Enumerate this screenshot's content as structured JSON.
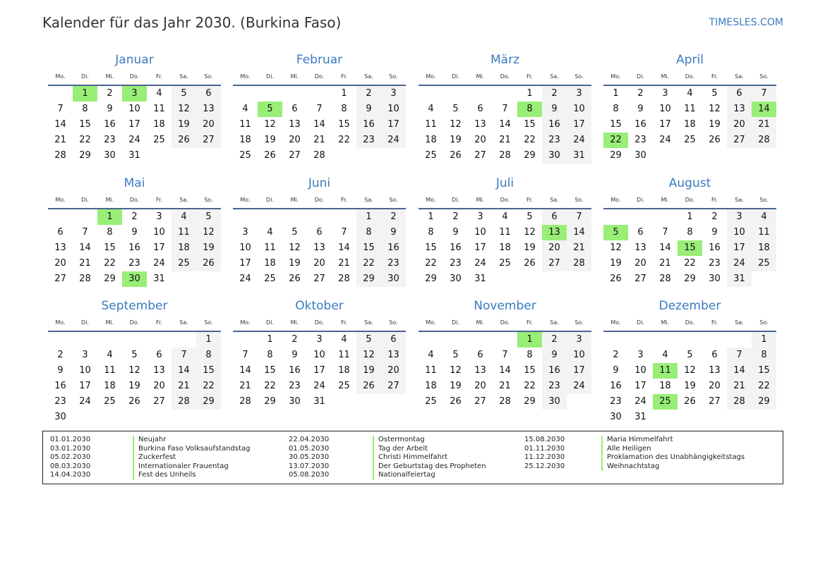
{
  "header": {
    "title": "Kalender für das Jahr 2030. (Burkina Faso)",
    "site": "TIMESLES.COM"
  },
  "colors": {
    "accent": "#3a7bbf",
    "holiday": "#99ee77",
    "weekend": "#f3f3f3",
    "rule": "#4a6590"
  },
  "weekdays": [
    "Mo.",
    "Di.",
    "Mi.",
    "Do.",
    "Fr.",
    "Sa.",
    "So."
  ],
  "months": [
    {
      "name": "Januar",
      "start_weekday": "Di.",
      "days": 31,
      "holidays": [
        1,
        3
      ]
    },
    {
      "name": "Februar",
      "start_weekday": "Fr.",
      "days": 28,
      "holidays": [
        5
      ]
    },
    {
      "name": "März",
      "start_weekday": "Fr.",
      "days": 31,
      "holidays": [
        8
      ]
    },
    {
      "name": "April",
      "start_weekday": "Mo.",
      "days": 30,
      "holidays": [
        14,
        22
      ]
    },
    {
      "name": "Mai",
      "start_weekday": "Mi.",
      "days": 31,
      "holidays": [
        1,
        30
      ]
    },
    {
      "name": "Juni",
      "start_weekday": "Sa.",
      "days": 30,
      "holidays": []
    },
    {
      "name": "Juli",
      "start_weekday": "Mo.",
      "days": 31,
      "holidays": [
        13
      ]
    },
    {
      "name": "August",
      "start_weekday": "Do.",
      "days": 31,
      "holidays": [
        5,
        15
      ]
    },
    {
      "name": "September",
      "start_weekday": "So.",
      "days": 30,
      "holidays": []
    },
    {
      "name": "Oktober",
      "start_weekday": "Di.",
      "days": 31,
      "holidays": []
    },
    {
      "name": "November",
      "start_weekday": "Fr.",
      "days": 30,
      "holidays": [
        1
      ]
    },
    {
      "name": "Dezember",
      "start_weekday": "So.",
      "days": 31,
      "holidays": [
        11,
        25
      ]
    }
  ],
  "legend": [
    {
      "date": "01.01.2030",
      "name": "Neujahr"
    },
    {
      "date": "03.01.2030",
      "name": "Burkina Faso Volksaufstandstag"
    },
    {
      "date": "05.02.2030",
      "name": "Zuckerfest"
    },
    {
      "date": "08.03.2030",
      "name": "Internationaler Frauentag"
    },
    {
      "date": "14.04.2030",
      "name": "Fest des Unheils"
    },
    {
      "date": "22.04.2030",
      "name": "Ostermontag"
    },
    {
      "date": "01.05.2030",
      "name": "Tag der Arbeit"
    },
    {
      "date": "30.05.2030",
      "name": "Christi Himmelfahrt"
    },
    {
      "date": "13.07.2030",
      "name": "Der Geburtstag des Propheten"
    },
    {
      "date": "05.08.2030",
      "name": "Nationalfeiertag"
    },
    {
      "date": "15.08.2030",
      "name": "Maria Himmelfahrt"
    },
    {
      "date": "01.11.2030",
      "name": "Alle Heiligen"
    },
    {
      "date": "11.12.2030",
      "name": "Proklamation des Unabhängigkeitstags"
    },
    {
      "date": "25.12.2030",
      "name": "Weihnachtstag"
    }
  ]
}
